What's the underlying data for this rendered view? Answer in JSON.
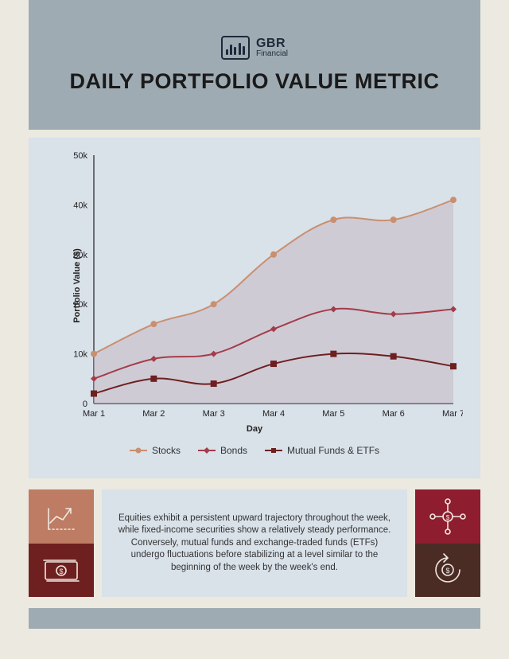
{
  "brand": {
    "name": "GBR",
    "sub": "Financial"
  },
  "title": "DAILY PORTFOLIO VALUE METRIC",
  "chart": {
    "type": "line-area",
    "ylabel": "Portfolio Value ($)",
    "xlabel": "Day",
    "ylim": [
      0,
      50000
    ],
    "ytick_step": 10000,
    "ytick_labels": [
      "0",
      "10k",
      "20k",
      "30k",
      "40k",
      "50k"
    ],
    "categories": [
      "Mar 1",
      "Mar 2",
      "Mar 3",
      "Mar 4",
      "Mar 5",
      "Mar 6",
      "Mar 7"
    ],
    "background_color": "#d9e1e9",
    "axis_color": "#222222",
    "label_fontsize": 11,
    "tick_fontsize": 11,
    "series": [
      {
        "name": "Stocks",
        "color": "#c98f6f",
        "fill_color": "#c7b9c4",
        "fill_opacity": 0.55,
        "marker": "circle",
        "marker_size": 4,
        "line_width": 2,
        "values": [
          10000,
          16000,
          20000,
          30000,
          37000,
          37000,
          41000
        ]
      },
      {
        "name": "Bonds",
        "color": "#a43c4a",
        "fill_color": "none",
        "marker": "diamond",
        "marker_size": 4,
        "line_width": 2,
        "values": [
          5000,
          9000,
          10000,
          15000,
          19000,
          18000,
          19000
        ]
      },
      {
        "name": "Mutual Funds & ETFs",
        "color": "#6e1f1f",
        "fill_color": "none",
        "marker": "square",
        "marker_size": 4,
        "line_width": 2,
        "values": [
          2000,
          5000,
          4000,
          8000,
          10000,
          9500,
          7500
        ]
      }
    ]
  },
  "description": "Equities exhibit a persistent upward trajectory throughout the week, while fixed-income securities show a relatively steady performance. Conversely, mutual funds and exchange-traded funds (ETFs) undergo fluctuations before stabilizing at a level similar to the beginning of the week by the week's end.",
  "icon_boxes": {
    "top_left": {
      "bg": "#bd7c63",
      "icon": "trend-up-icon",
      "stroke": "#f1e8e0"
    },
    "bottom_left": {
      "bg": "#6e1f1f",
      "icon": "cash-icon",
      "stroke": "#f1e8e0"
    },
    "top_right": {
      "bg": "#8e1d2f",
      "icon": "network-icon",
      "stroke": "#f1e8e0"
    },
    "bottom_right": {
      "bg": "#4a2c25",
      "icon": "refund-icon",
      "stroke": "#f1e8e0"
    }
  },
  "colors": {
    "page_bg": "#ebe9e0",
    "header_bg": "#9fabb3",
    "panel_bg": "#d9e1e9"
  }
}
